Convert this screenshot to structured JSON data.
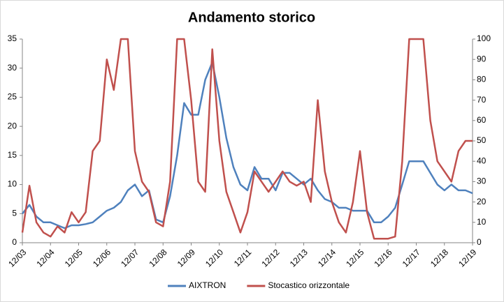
{
  "chart_data": {
    "type": "line",
    "title": "Andamento storico",
    "x": [
      "12/03",
      "03/04",
      "06/04",
      "09/04",
      "12/04",
      "03/05",
      "06/05",
      "09/05",
      "12/05",
      "03/06",
      "06/06",
      "09/06",
      "12/06",
      "03/07",
      "06/07",
      "09/07",
      "12/07",
      "03/08",
      "06/08",
      "09/08",
      "12/08",
      "03/09",
      "06/09",
      "09/09",
      "12/09",
      "03/10",
      "06/10",
      "09/10",
      "12/10",
      "03/11",
      "06/11",
      "09/11",
      "12/11",
      "03/12",
      "06/12",
      "09/12",
      "12/12",
      "03/13",
      "06/13",
      "09/13",
      "12/13",
      "03/14",
      "06/14",
      "09/14",
      "12/14",
      "03/15",
      "06/15",
      "09/15",
      "12/15",
      "03/16",
      "06/16",
      "09/16",
      "12/16",
      "03/17",
      "06/17",
      "09/17",
      "12/17",
      "03/18",
      "06/18",
      "09/18",
      "12/18",
      "03/19",
      "06/19",
      "09/19",
      "12/19"
    ],
    "xticks": [
      "12/03",
      "12/04",
      "12/05",
      "12/06",
      "12/07",
      "12/08",
      "12/09",
      "12/10",
      "12/11",
      "12/12",
      "12/13",
      "12/14",
      "12/15",
      "12/16",
      "12/17",
      "12/18",
      "12/19"
    ],
    "series": [
      {
        "name": "AIXTRON",
        "color": "#4f81bd",
        "values": [
          5,
          6.5,
          4.5,
          3.5,
          3.5,
          3,
          2.5,
          3,
          3,
          3.2,
          3.5,
          4.5,
          5.5,
          6,
          7,
          9,
          10,
          8,
          9,
          4,
          3.5,
          8,
          15,
          24,
          22,
          22,
          28,
          31,
          25,
          18,
          13,
          10,
          9,
          13,
          11,
          11,
          9,
          12,
          12,
          11,
          10,
          11,
          9,
          7.5,
          7,
          6,
          6,
          5.5,
          5.5,
          5.5,
          3.5,
          3.5,
          4.5,
          6,
          10,
          14,
          14,
          14,
          12,
          10,
          9,
          10,
          9,
          9,
          8.5
        ]
      },
      {
        "name": "Stocastico orizzontale",
        "color": "#c0504d",
        "axis": "y2",
        "values": [
          5,
          28,
          10,
          5,
          3,
          8,
          5,
          15,
          10,
          15,
          45,
          50,
          90,
          75,
          100,
          100,
          45,
          30,
          25,
          10,
          8,
          30,
          100,
          100,
          70,
          30,
          25,
          95,
          50,
          25,
          15,
          5,
          15,
          35,
          30,
          25,
          30,
          35,
          30,
          28,
          30,
          20,
          70,
          35,
          20,
          10,
          5,
          20,
          45,
          15,
          2,
          2,
          2,
          3,
          40,
          100,
          100,
          100,
          60,
          40,
          35,
          30,
          45,
          50,
          50
        ]
      }
    ],
    "ylim": [
      0,
      35
    ],
    "yticks": [
      0,
      5,
      10,
      15,
      20,
      25,
      30,
      35
    ],
    "y2lim": [
      0,
      100
    ],
    "y2ticks": [
      0,
      10,
      20,
      30,
      40,
      50,
      60,
      70,
      80,
      90,
      100
    ],
    "legend": "bottom"
  }
}
